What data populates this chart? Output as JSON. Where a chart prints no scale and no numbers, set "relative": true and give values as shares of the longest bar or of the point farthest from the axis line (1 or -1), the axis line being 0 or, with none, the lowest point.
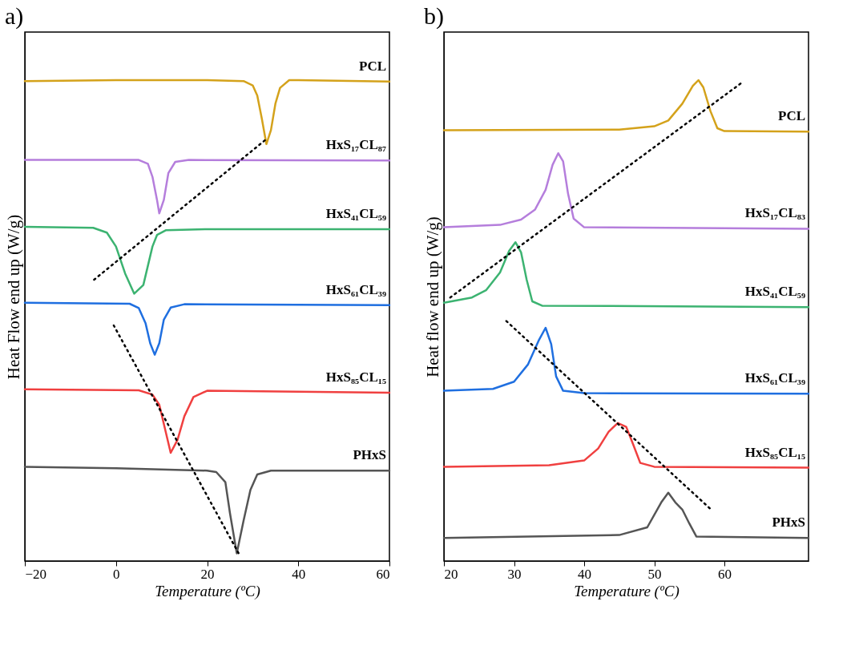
{
  "chart_data": [
    {
      "type": "line",
      "title": "a)",
      "xlabel": "Temperature (ºC)",
      "ylabel": "Heat Flow end up (W/g)",
      "relative": true,
      "xlim": [
        -20,
        60
      ],
      "xticks": [
        -20,
        0,
        20,
        40,
        60
      ],
      "series": [
        {
          "name": "PCL",
          "color": "#d4a21b",
          "x": [
            -20,
            0,
            20,
            28,
            30,
            31,
            32,
            33,
            34,
            35,
            36,
            38,
            40,
            60
          ],
          "values": [
            0.998,
            1.0,
            1.0,
            0.998,
            0.989,
            0.968,
            0.92,
            0.867,
            0.896,
            0.952,
            0.984,
            1.0,
            1.0,
            0.997
          ]
        },
        {
          "name": "HxS₁₇CL₈₇",
          "color": "#b57edc",
          "x": [
            -20,
            5,
            7,
            8,
            9,
            9.5,
            10.5,
            11.5,
            13,
            16,
            60
          ],
          "values": [
            0.834,
            0.834,
            0.826,
            0.799,
            0.751,
            0.723,
            0.751,
            0.807,
            0.83,
            0.834,
            0.833
          ]
        },
        {
          "name": "HxS₄₁CL₅₉",
          "color": "#3cb371",
          "x": [
            -20,
            -5,
            -2,
            0,
            2,
            4,
            6,
            7,
            8,
            9,
            11,
            20,
            60
          ],
          "values": [
            0.695,
            0.693,
            0.683,
            0.654,
            0.598,
            0.556,
            0.574,
            0.614,
            0.654,
            0.678,
            0.688,
            0.69,
            0.69
          ]
        },
        {
          "name": "HxS₆₁CL₃₉",
          "color": "#1f6fe0",
          "x": [
            -20,
            3,
            5,
            6.5,
            7.5,
            8.5,
            9.5,
            10.5,
            12,
            15,
            60
          ],
          "values": [
            0.537,
            0.535,
            0.526,
            0.494,
            0.453,
            0.429,
            0.453,
            0.502,
            0.527,
            0.534,
            0.532
          ]
        },
        {
          "name": "HxS₈₅CL₁₅",
          "color": "#f04040",
          "x": [
            -20,
            5,
            8,
            9.5,
            10.5,
            12,
            13.5,
            15,
            17,
            20,
            60
          ],
          "values": [
            0.357,
            0.355,
            0.346,
            0.325,
            0.285,
            0.225,
            0.252,
            0.301,
            0.341,
            0.354,
            0.35
          ]
        },
        {
          "name": "PHxS",
          "color": "#555555",
          "x": [
            -20,
            0,
            20,
            22,
            24,
            25,
            26.5,
            28,
            29.5,
            31,
            34,
            60
          ],
          "values": [
            0.196,
            0.193,
            0.188,
            0.185,
            0.164,
            0.1,
            0.016,
            0.084,
            0.148,
            0.18,
            0.188,
            0.188
          ]
        },
        {
          "color": "#000000",
          "line_style": "dotted",
          "x": [
            -4.8,
            33.2
          ],
          "values": [
            0.585,
            0.879
          ]
        },
        {
          "color": "#000000",
          "line_style": "dotted",
          "x": [
            -0.5,
            27.2
          ],
          "values": [
            0.49,
            0.011
          ]
        }
      ]
    },
    {
      "type": "line",
      "title": "b)",
      "xlabel": "Temperature (ºC)",
      "ylabel": "Heat flow end up (W/g)",
      "relative": true,
      "xlim": [
        20,
        72
      ],
      "xticks": [
        20,
        30,
        40,
        50,
        60
      ],
      "series": [
        {
          "name": "PCL",
          "color": "#d4a21b",
          "x": [
            20,
            45,
            50,
            52,
            54,
            55.5,
            56.3,
            57,
            58,
            59,
            60,
            72
          ],
          "values": [
            0.896,
            0.897,
            0.904,
            0.916,
            0.951,
            0.988,
            1.0,
            0.985,
            0.936,
            0.9,
            0.894,
            0.893
          ]
        },
        {
          "name": "HxS₁₇CL₈₃",
          "color": "#b57edc",
          "x": [
            20,
            28,
            31,
            33,
            34.5,
            35.5,
            36.3,
            37,
            37.7,
            38.5,
            40,
            72
          ],
          "values": [
            0.694,
            0.699,
            0.71,
            0.731,
            0.772,
            0.824,
            0.848,
            0.831,
            0.764,
            0.712,
            0.694,
            0.691
          ]
        },
        {
          "name": "HxS₄₁CL₅₉",
          "color": "#3cb371",
          "x": [
            20,
            24,
            26,
            28,
            29.3,
            30.2,
            31,
            31.8,
            32.6,
            34,
            72
          ],
          "values": [
            0.537,
            0.548,
            0.563,
            0.6,
            0.645,
            0.663,
            0.642,
            0.585,
            0.54,
            0.531,
            0.528
          ]
        },
        {
          "name": "HxS₆₁CL₃₉",
          "color": "#1f6fe0",
          "x": [
            20,
            27,
            30,
            32,
            33.5,
            34.5,
            35.3,
            36,
            37,
            40,
            72
          ],
          "values": [
            0.354,
            0.358,
            0.373,
            0.409,
            0.458,
            0.485,
            0.451,
            0.384,
            0.354,
            0.349,
            0.348
          ]
        },
        {
          "name": "HxS₈₅CL₁₅",
          "color": "#f04040",
          "x": [
            20,
            35,
            40,
            42,
            43.5,
            44.8,
            46,
            47,
            48,
            50,
            72
          ],
          "values": [
            0.196,
            0.199,
            0.209,
            0.234,
            0.269,
            0.287,
            0.279,
            0.242,
            0.204,
            0.196,
            0.194
          ]
        },
        {
          "name": "PHxS",
          "color": "#555555",
          "x": [
            20,
            45,
            49,
            51,
            52,
            53,
            54,
            55,
            56,
            72
          ],
          "values": [
            0.048,
            0.054,
            0.07,
            0.122,
            0.142,
            0.122,
            0.107,
            0.078,
            0.051,
            0.048
          ]
        },
        {
          "color": "#000000",
          "line_style": "dotted",
          "x": [
            20.9,
            62.6
          ],
          "values": [
            0.548,
            0.996
          ]
        },
        {
          "color": "#000000",
          "line_style": "dotted",
          "x": [
            28.9,
            58.1
          ],
          "values": [
            0.499,
            0.107
          ]
        }
      ]
    }
  ]
}
